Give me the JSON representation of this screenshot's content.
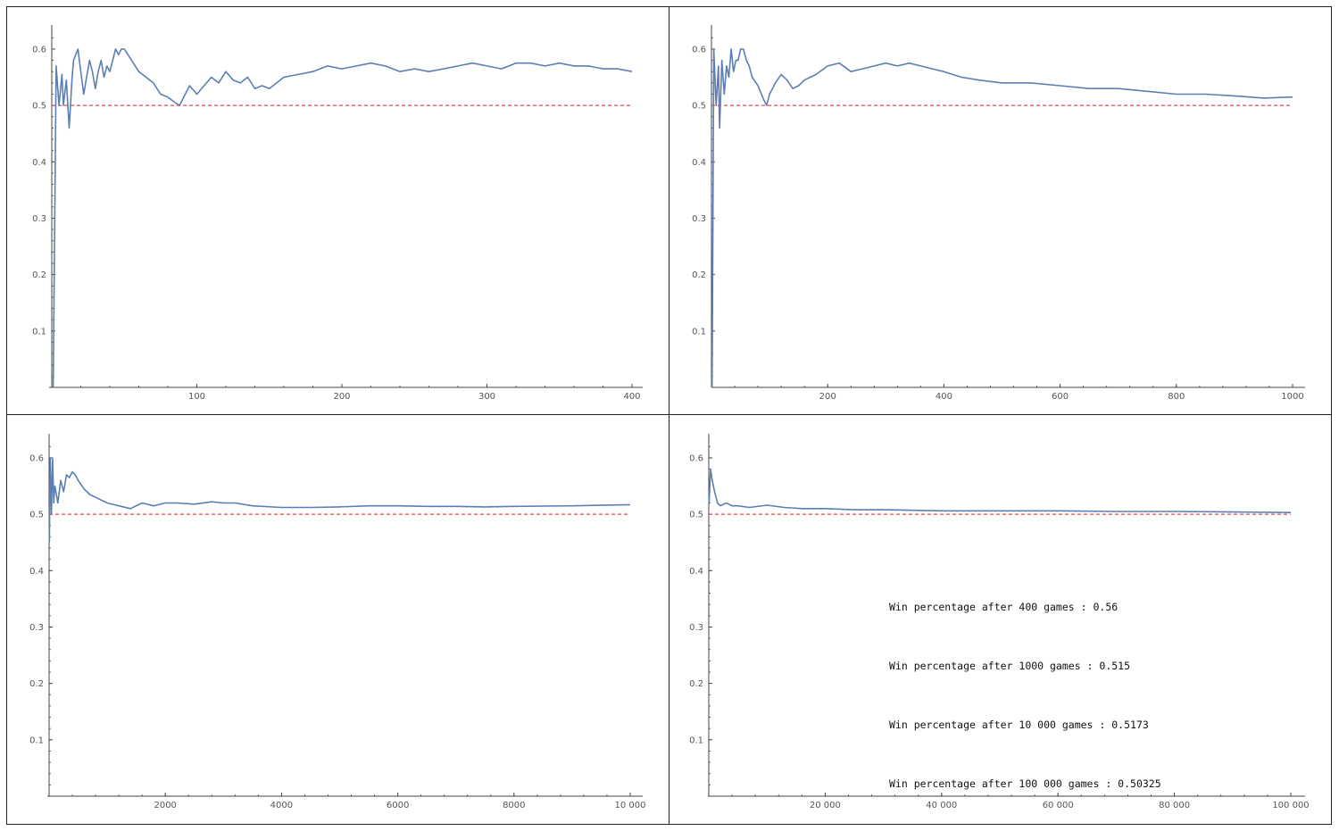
{
  "colors": {
    "series": "#5b7fb4",
    "reference": "#e8484e",
    "axis": "#444444",
    "tick_text": "#555555",
    "border": "#222222"
  },
  "chart_data": [
    {
      "type": "line",
      "xlim": [
        0,
        400
      ],
      "ylim": [
        0,
        0.63
      ],
      "x_ticks": [
        100,
        200,
        300,
        400
      ],
      "x_tick_labels": [
        "100",
        "200",
        "300",
        "400"
      ],
      "y_ticks": [
        0.1,
        0.2,
        0.3,
        0.4,
        0.5,
        0.6
      ],
      "y_tick_labels": [
        "0.1",
        "0.2",
        "0.3",
        "0.4",
        "0.5",
        "0.6"
      ],
      "reference_line": 0.5,
      "series": [
        {
          "x": [
            1,
            3,
            5,
            7,
            8,
            10,
            12,
            14,
            15,
            18,
            20,
            22,
            24,
            26,
            28,
            30,
            32,
            34,
            36,
            38,
            40,
            42,
            44,
            46,
            48,
            50,
            55,
            60,
            65,
            70,
            75,
            80,
            85,
            88,
            90,
            95,
            100,
            105,
            110,
            115,
            120,
            125,
            130,
            135,
            140,
            145,
            150,
            160,
            170,
            180,
            190,
            200,
            210,
            220,
            230,
            240,
            250,
            260,
            270,
            280,
            290,
            300,
            310,
            320,
            330,
            340,
            350,
            360,
            370,
            380,
            390,
            400
          ],
          "y": [
            0,
            0.57,
            0.5,
            0.555,
            0.5,
            0.545,
            0.46,
            0.55,
            0.58,
            0.6,
            0.56,
            0.52,
            0.55,
            0.58,
            0.56,
            0.53,
            0.56,
            0.58,
            0.55,
            0.57,
            0.56,
            0.58,
            0.6,
            0.59,
            0.6,
            0.6,
            0.58,
            0.56,
            0.55,
            0.54,
            0.52,
            0.515,
            0.505,
            0.5,
            0.51,
            0.535,
            0.52,
            0.535,
            0.55,
            0.54,
            0.56,
            0.545,
            0.54,
            0.55,
            0.53,
            0.535,
            0.53,
            0.55,
            0.555,
            0.56,
            0.57,
            0.565,
            0.57,
            0.575,
            0.57,
            0.56,
            0.565,
            0.56,
            0.565,
            0.57,
            0.575,
            0.57,
            0.565,
            0.575,
            0.575,
            0.57,
            0.575,
            0.57,
            0.57,
            0.565,
            0.565,
            0.56
          ]
        }
      ]
    },
    {
      "type": "line",
      "xlim": [
        0,
        1000
      ],
      "ylim": [
        0,
        0.63
      ],
      "x_ticks": [
        200,
        400,
        600,
        800,
        1000
      ],
      "x_tick_labels": [
        "200",
        "400",
        "600",
        "800",
        "1000"
      ],
      "y_ticks": [
        0.1,
        0.2,
        0.3,
        0.4,
        0.5,
        0.6
      ],
      "y_tick_labels": [
        "0.1",
        "0.2",
        "0.3",
        "0.4",
        "0.5",
        "0.6"
      ],
      "reference_line": 0.5,
      "series": [
        {
          "x": [
            1,
            4,
            8,
            12,
            14,
            18,
            22,
            26,
            30,
            34,
            38,
            42,
            46,
            50,
            55,
            60,
            65,
            70,
            80,
            90,
            95,
            100,
            110,
            120,
            130,
            140,
            150,
            160,
            170,
            180,
            200,
            220,
            240,
            260,
            280,
            300,
            320,
            340,
            360,
            380,
            400,
            430,
            460,
            500,
            550,
            600,
            650,
            700,
            750,
            800,
            850,
            900,
            950,
            1000
          ],
          "y": [
            0,
            0.6,
            0.5,
            0.57,
            0.46,
            0.58,
            0.52,
            0.57,
            0.55,
            0.6,
            0.56,
            0.58,
            0.58,
            0.6,
            0.6,
            0.58,
            0.57,
            0.55,
            0.535,
            0.51,
            0.5,
            0.52,
            0.54,
            0.555,
            0.545,
            0.53,
            0.535,
            0.545,
            0.55,
            0.555,
            0.57,
            0.575,
            0.56,
            0.565,
            0.57,
            0.575,
            0.57,
            0.575,
            0.57,
            0.565,
            0.56,
            0.55,
            0.545,
            0.54,
            0.54,
            0.535,
            0.53,
            0.53,
            0.525,
            0.52,
            0.52,
            0.517,
            0.513,
            0.515
          ]
        }
      ]
    },
    {
      "type": "line",
      "xlim": [
        0,
        10000
      ],
      "ylim": [
        0,
        0.63
      ],
      "x_ticks": [
        2000,
        4000,
        6000,
        8000,
        10000
      ],
      "x_tick_labels": [
        "2000",
        "4000",
        "6000",
        "8000",
        "10 000"
      ],
      "y_ticks": [
        0.1,
        0.2,
        0.3,
        0.4,
        0.5,
        0.6
      ],
      "y_tick_labels": [
        "0.1",
        "0.2",
        "0.3",
        "0.4",
        "0.5",
        "0.6"
      ],
      "reference_line": 0.5,
      "series": [
        {
          "x": [
            5,
            20,
            40,
            60,
            80,
            100,
            150,
            200,
            250,
            300,
            350,
            400,
            450,
            500,
            600,
            700,
            800,
            1000,
            1200,
            1400,
            1600,
            1800,
            2000,
            2200,
            2500,
            2800,
            3000,
            3200,
            3500,
            4000,
            4500,
            5000,
            5500,
            6000,
            6500,
            7000,
            7500,
            8000,
            9000,
            10000
          ],
          "y": [
            0.45,
            0.6,
            0.5,
            0.6,
            0.52,
            0.55,
            0.52,
            0.56,
            0.54,
            0.57,
            0.565,
            0.575,
            0.57,
            0.56,
            0.545,
            0.535,
            0.53,
            0.52,
            0.515,
            0.51,
            0.52,
            0.515,
            0.52,
            0.52,
            0.518,
            0.522,
            0.52,
            0.52,
            0.515,
            0.512,
            0.512,
            0.513,
            0.515,
            0.515,
            0.514,
            0.514,
            0.513,
            0.514,
            0.515,
            0.517
          ]
        }
      ]
    },
    {
      "type": "line",
      "xlim": [
        0,
        100000
      ],
      "ylim": [
        0,
        0.63
      ],
      "x_ticks": [
        20000,
        40000,
        60000,
        80000,
        100000
      ],
      "x_tick_labels": [
        "20 000",
        "40 000",
        "60 000",
        "80 000",
        "100 000"
      ],
      "y_ticks": [
        0.1,
        0.2,
        0.3,
        0.4,
        0.5,
        0.6
      ],
      "y_tick_labels": [
        "0.1",
        "0.2",
        "0.3",
        "0.4",
        "0.5",
        "0.6"
      ],
      "reference_line": 0.5,
      "series": [
        {
          "x": [
            50,
            300,
            600,
            1000,
            1500,
            2000,
            3000,
            4000,
            5000,
            7000,
            10000,
            13000,
            16000,
            20000,
            25000,
            30000,
            40000,
            50000,
            60000,
            70000,
            80000,
            90000,
            100000
          ],
          "y": [
            0.52,
            0.58,
            0.56,
            0.54,
            0.52,
            0.515,
            0.52,
            0.515,
            0.515,
            0.512,
            0.516,
            0.512,
            0.51,
            0.51,
            0.508,
            0.508,
            0.506,
            0.506,
            0.506,
            0.505,
            0.505,
            0.504,
            0.503
          ]
        }
      ]
    }
  ],
  "stats": {
    "line_400": "Win percentage after 400 games : 0.56",
    "line_1000": "Win percentage after 1000 games : 0.515",
    "line_10000": "Win percentage after 10 000 games : 0.5173",
    "line_100000": "Win percentage after 100 000 games : 0.50325"
  }
}
